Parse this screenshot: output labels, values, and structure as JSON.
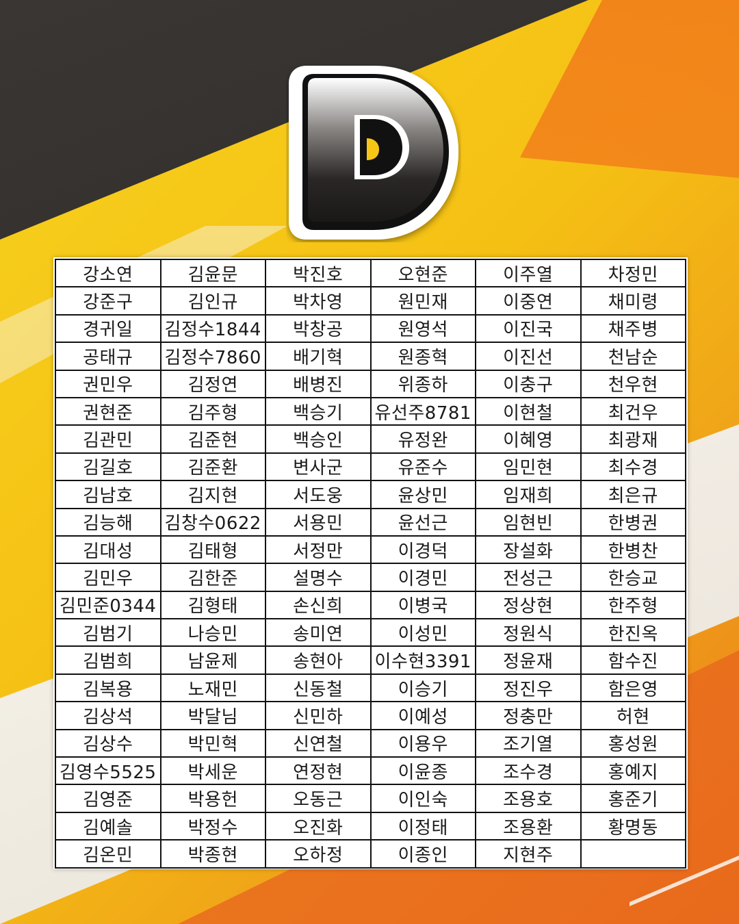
{
  "logo": {
    "letter": "D",
    "colors": {
      "outer": "#ffffff",
      "body_top": "#ffffff",
      "body_bottom": "#1e1c1b",
      "inner_accent": "#f5c518"
    }
  },
  "background": {
    "colors": {
      "dark": "#2e2b29",
      "yellow": "#f5c518",
      "orange": "#ec7a1c",
      "white": "#ffffff"
    }
  },
  "table": {
    "rows": [
      [
        "강소연",
        "김윤문",
        "박진호",
        "오현준",
        "이주열",
        "차정민"
      ],
      [
        "강준구",
        "김인규",
        "박차영",
        "원민재",
        "이중연",
        "채미령"
      ],
      [
        "경귀일",
        "김정수1844",
        "박창공",
        "원영석",
        "이진국",
        "채주병"
      ],
      [
        "공태규",
        "김정수7860",
        "배기혁",
        "원종혁",
        "이진선",
        "천남순"
      ],
      [
        "권민우",
        "김정연",
        "배병진",
        "위종하",
        "이충구",
        "천우현"
      ],
      [
        "권현준",
        "김주형",
        "백승기",
        "유선주8781",
        "이현철",
        "최건우"
      ],
      [
        "김관민",
        "김준현",
        "백승인",
        "유정완",
        "이혜영",
        "최광재"
      ],
      [
        "김길호",
        "김준환",
        "변사군",
        "유준수",
        "임민현",
        "최수경"
      ],
      [
        "김남호",
        "김지현",
        "서도웅",
        "윤상민",
        "임재희",
        "최은규"
      ],
      [
        "김능해",
        "김창수0622",
        "서용민",
        "윤선근",
        "임현빈",
        "한병권"
      ],
      [
        "김대성",
        "김태형",
        "서정만",
        "이경덕",
        "장설화",
        "한병찬"
      ],
      [
        "김민우",
        "김한준",
        "설명수",
        "이경민",
        "전성근",
        "한승교"
      ],
      [
        "김민준0344",
        "김형태",
        "손신희",
        "이병국",
        "정상현",
        "한주형"
      ],
      [
        "김범기",
        "나승민",
        "송미연",
        "이성민",
        "정원식",
        "한진옥"
      ],
      [
        "김범희",
        "남윤제",
        "송현아",
        "이수현3391",
        "정윤재",
        "함수진"
      ],
      [
        "김복용",
        "노재민",
        "신동철",
        "이승기",
        "정진우",
        "함은영"
      ],
      [
        "김상석",
        "박달님",
        "신민하",
        "이예성",
        "정충만",
        "허현"
      ],
      [
        "김상수",
        "박민혁",
        "신연철",
        "이용우",
        "조기열",
        "홍성원"
      ],
      [
        "김영수5525",
        "박세운",
        "연정현",
        "이윤종",
        "조수경",
        "홍예지"
      ],
      [
        "김영준",
        "박용헌",
        "오동근",
        "이인숙",
        "조용호",
        "홍준기"
      ],
      [
        "김예솔",
        "박정수",
        "오진화",
        "이정태",
        "조용환",
        "황명동"
      ],
      [
        "김온민",
        "박종현",
        "오하정",
        "이종인",
        "지현주",
        ""
      ]
    ]
  }
}
